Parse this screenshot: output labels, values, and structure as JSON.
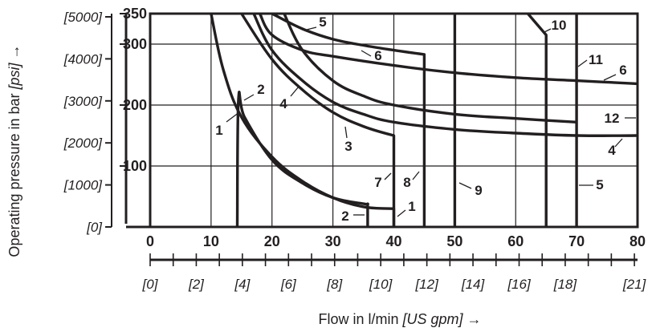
{
  "chart_data": {
    "type": "line",
    "title": "",
    "xlabel": "Flow in l/min",
    "xlabel_unit": "[US gpm]",
    "xlabel_arrow": "→",
    "ylabel": "Operating pressure in bar",
    "ylabel_unit": "[psi]",
    "ylabel_arrow": "→",
    "xlim": [
      0,
      80
    ],
    "ylim": [
      0,
      350
    ],
    "grid": true,
    "x_ticks": [
      "0",
      "10",
      "20",
      "30",
      "40",
      "50",
      "60",
      "70",
      "80"
    ],
    "x_ticks_gpm": [
      "[0]",
      "[2]",
      "[4]",
      "[6]",
      "[8]",
      "[10]",
      "[12]",
      "[14]",
      "[16]",
      "[18]",
      "[21]"
    ],
    "y_ticks_bar": [
      "100",
      "200",
      "300",
      "350"
    ],
    "y_ticks_psi": [
      "[0]",
      "[1000]",
      "[2000]",
      "[3000]",
      "[4000]",
      "[5000]"
    ],
    "series": [
      {
        "name": "1",
        "x": [
          10,
          12,
          15,
          20,
          25,
          30,
          35,
          40,
          40
        ],
        "y": [
          350,
          258,
          180,
          115,
          75,
          48,
          33,
          30,
          0
        ]
      },
      {
        "name": "1",
        "x": [
          14.3,
          14.5,
          15.5,
          20,
          25,
          30,
          35,
          35.7,
          35.7
        ],
        "y": [
          0,
          210,
          180,
          110,
          72,
          48,
          38,
          38,
          0
        ]
      },
      {
        "name": "3",
        "x": [
          15,
          20,
          25,
          30,
          35,
          40,
          40
        ],
        "y": [
          350,
          275,
          225,
          188,
          165,
          150,
          0
        ]
      },
      {
        "name": "4",
        "x": [
          17,
          20,
          25,
          30,
          35,
          40,
          50,
          60,
          70,
          80
        ],
        "y": [
          350,
          290,
          240,
          205,
          185,
          172,
          160,
          154,
          150,
          150
        ]
      },
      {
        "name": "5",
        "x": [
          20,
          25,
          30,
          35,
          40,
          45,
          45
        ],
        "y": [
          350,
          325,
          308,
          298,
          290,
          283,
          0
        ]
      },
      {
        "name": "6",
        "x": [
          18,
          20,
          25,
          30,
          40,
          50,
          60,
          70,
          80
        ],
        "y": [
          350,
          315,
          290,
          280,
          265,
          253,
          245,
          240,
          235
        ]
      },
      {
        "name": "7",
        "x": [
          22,
          25,
          30,
          35,
          40,
          50,
          60,
          70
        ],
        "y": [
          350,
          290,
          240,
          215,
          200,
          185,
          178,
          172
        ]
      },
      {
        "name": "10",
        "x": [
          62,
          65,
          65
        ],
        "y": [
          350,
          315,
          0
        ]
      },
      {
        "name": "9",
        "x": [
          50,
          50
        ],
        "y": [
          0,
          350
        ]
      },
      {
        "name": "11",
        "x": [
          70,
          70
        ],
        "y": [
          0,
          350
        ]
      }
    ],
    "curve_labels": [
      "1",
      "2",
      "4",
      "3",
      "2",
      "1",
      "7",
      "8",
      "9",
      "5",
      "6",
      "5",
      "10",
      "11",
      "6",
      "12",
      "4"
    ]
  },
  "colors": {
    "line": "#231f20",
    "grid": "#231f20",
    "background": "#ffffff"
  }
}
